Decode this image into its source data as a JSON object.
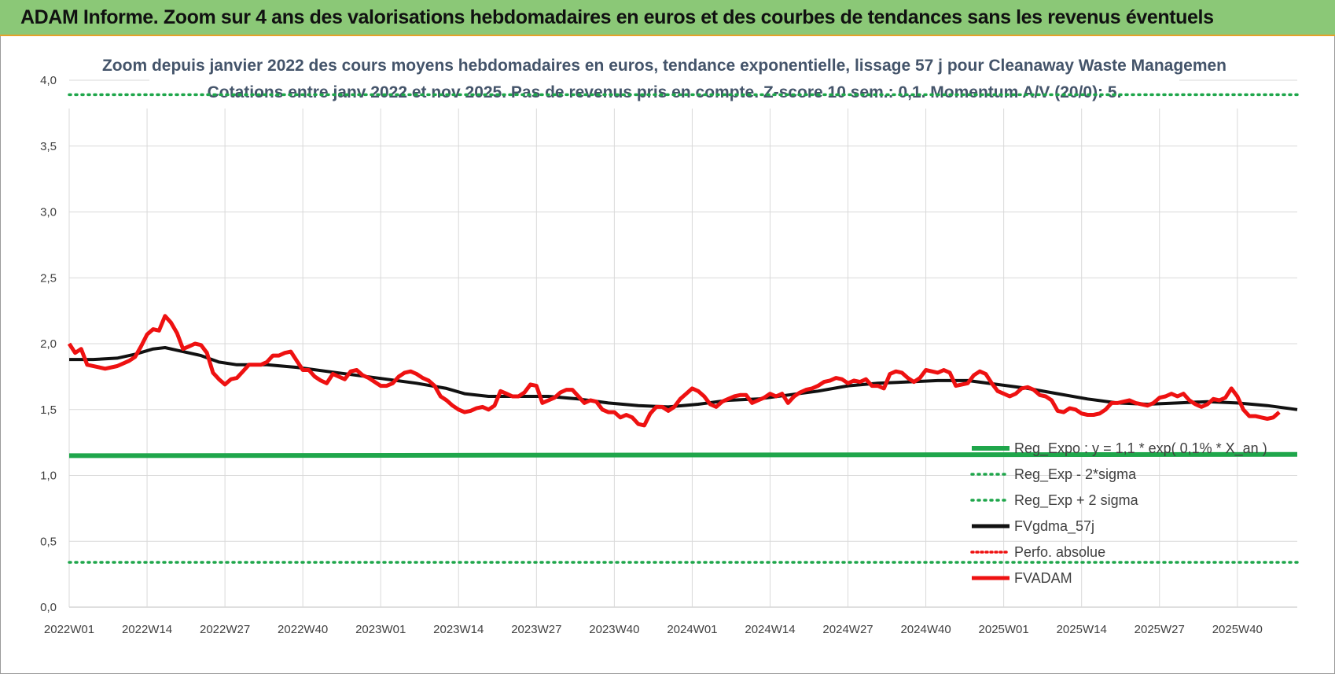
{
  "banner": {
    "title": "ADAM Informe. Zoom sur 4 ans des valorisations hebdomadaires en euros et des courbes de tendances sans les revenus éventuels"
  },
  "colors": {
    "banner_bg": "#8bc877",
    "banner_border": "#e5a12a",
    "price": "#ee1111",
    "smooth": "#111111",
    "trend": "#1fa64b",
    "band": "#1fa64b",
    "absolute": "#ee1111",
    "grid": "#d9d9d9"
  },
  "chart_data": {
    "type": "line",
    "title": "Zoom depuis janvier 2022 des cours moyens hebdomadaires en euros, tendance exponentielle, lissage 57 j pour Cleanaway Waste Managemen",
    "subtitle": "Cotations entre janv 2022 et nov 2025. Pas de revenus pris en compte. Z-score 10 sem.: 0,1. Momentum A/V (20/0): 5.",
    "xlabel": "",
    "ylabel": "",
    "ylim": [
      0,
      4
    ],
    "yticks": [
      "0,0",
      "0,5",
      "1,0",
      "1,5",
      "2,0",
      "2,5",
      "3,0",
      "3,5",
      "4,0"
    ],
    "xticks": [
      "2022W01",
      "2022W14",
      "2022W27",
      "2022W40",
      "2023W01",
      "2023W14",
      "2023W27",
      "2023W40",
      "2024W01",
      "2024W14",
      "2024W27",
      "2024W40",
      "2025W01",
      "2025W14",
      "2025W27",
      "2025W40"
    ],
    "weeks_per_tick": 13,
    "n_weeks": 206,
    "grid": true,
    "legend_position": "right",
    "series": [
      {
        "name": "Reg_Expo : y = 1,1 * exp( 0,1% * X_an )",
        "style": "solid-thick",
        "points": [
          [
            0,
            1.15
          ],
          [
            205,
            1.16
          ]
        ]
      },
      {
        "name": "Reg_Exp - 2*sigma",
        "style": "dotted",
        "points": [
          [
            0,
            0.34
          ],
          [
            205,
            0.34
          ]
        ]
      },
      {
        "name": "Reg_Exp + 2 sigma",
        "style": "dotted",
        "points": [
          [
            0,
            3.89
          ],
          [
            205,
            3.89
          ]
        ]
      },
      {
        "name": "FVgdma_57j",
        "style": "solid",
        "points": [
          [
            0,
            1.88
          ],
          [
            4,
            1.88
          ],
          [
            8,
            1.89
          ],
          [
            11,
            1.92
          ],
          [
            14,
            1.96
          ],
          [
            16,
            1.97
          ],
          [
            19,
            1.94
          ],
          [
            22,
            1.91
          ],
          [
            25,
            1.86
          ],
          [
            28,
            1.84
          ],
          [
            33,
            1.84
          ],
          [
            38,
            1.82
          ],
          [
            43,
            1.79
          ],
          [
            48,
            1.76
          ],
          [
            53,
            1.73
          ],
          [
            58,
            1.7
          ],
          [
            63,
            1.66
          ],
          [
            66,
            1.62
          ],
          [
            70,
            1.6
          ],
          [
            75,
            1.6
          ],
          [
            80,
            1.6
          ],
          [
            85,
            1.58
          ],
          [
            90,
            1.55
          ],
          [
            95,
            1.53
          ],
          [
            100,
            1.52
          ],
          [
            105,
            1.54
          ],
          [
            110,
            1.57
          ],
          [
            115,
            1.58
          ],
          [
            120,
            1.61
          ],
          [
            125,
            1.64
          ],
          [
            130,
            1.68
          ],
          [
            135,
            1.7
          ],
          [
            140,
            1.71
          ],
          [
            145,
            1.72
          ],
          [
            150,
            1.72
          ],
          [
            155,
            1.69
          ],
          [
            160,
            1.66
          ],
          [
            165,
            1.62
          ],
          [
            170,
            1.58
          ],
          [
            175,
            1.55
          ],
          [
            180,
            1.54
          ],
          [
            185,
            1.55
          ],
          [
            190,
            1.56
          ],
          [
            195,
            1.55
          ],
          [
            200,
            1.53
          ],
          [
            205,
            1.5
          ]
        ]
      },
      {
        "name": "Perfo. absolue",
        "style": "dotted",
        "points": []
      },
      {
        "name": "FVADAM",
        "style": "solid-thick",
        "points": [
          [
            0,
            2.0
          ],
          [
            1,
            1.93
          ],
          [
            2,
            1.96
          ],
          [
            3,
            1.84
          ],
          [
            5,
            1.82
          ],
          [
            6,
            1.81
          ],
          [
            8,
            1.83
          ],
          [
            10,
            1.87
          ],
          [
            11,
            1.9
          ],
          [
            12,
            1.98
          ],
          [
            13,
            2.07
          ],
          [
            14,
            2.11
          ],
          [
            15,
            2.1
          ],
          [
            16,
            2.21
          ],
          [
            17,
            2.16
          ],
          [
            18,
            2.08
          ],
          [
            19,
            1.96
          ],
          [
            20,
            1.98
          ],
          [
            21,
            2.0
          ],
          [
            22,
            1.99
          ],
          [
            23,
            1.93
          ],
          [
            24,
            1.78
          ],
          [
            25,
            1.73
          ],
          [
            26,
            1.69
          ],
          [
            27,
            1.73
          ],
          [
            28,
            1.74
          ],
          [
            29,
            1.79
          ],
          [
            30,
            1.84
          ],
          [
            32,
            1.84
          ],
          [
            33,
            1.86
          ],
          [
            34,
            1.91
          ],
          [
            35,
            1.91
          ],
          [
            36,
            1.93
          ],
          [
            37,
            1.94
          ],
          [
            38,
            1.87
          ],
          [
            39,
            1.8
          ],
          [
            40,
            1.8
          ],
          [
            41,
            1.75
          ],
          [
            42,
            1.72
          ],
          [
            43,
            1.7
          ],
          [
            44,
            1.77
          ],
          [
            45,
            1.75
          ],
          [
            46,
            1.73
          ],
          [
            47,
            1.79
          ],
          [
            48,
            1.8
          ],
          [
            49,
            1.76
          ],
          [
            50,
            1.74
          ],
          [
            51,
            1.71
          ],
          [
            52,
            1.68
          ],
          [
            53,
            1.68
          ],
          [
            54,
            1.7
          ],
          [
            55,
            1.75
          ],
          [
            56,
            1.78
          ],
          [
            57,
            1.79
          ],
          [
            58,
            1.77
          ],
          [
            59,
            1.74
          ],
          [
            60,
            1.72
          ],
          [
            61,
            1.68
          ],
          [
            62,
            1.6
          ],
          [
            63,
            1.57
          ],
          [
            64,
            1.53
          ],
          [
            65,
            1.5
          ],
          [
            66,
            1.48
          ],
          [
            67,
            1.49
          ],
          [
            68,
            1.51
          ],
          [
            69,
            1.52
          ],
          [
            70,
            1.5
          ],
          [
            71,
            1.53
          ],
          [
            72,
            1.64
          ],
          [
            73,
            1.62
          ],
          [
            74,
            1.6
          ],
          [
            75,
            1.6
          ],
          [
            76,
            1.63
          ],
          [
            77,
            1.69
          ],
          [
            78,
            1.68
          ],
          [
            79,
            1.55
          ],
          [
            80,
            1.57
          ],
          [
            81,
            1.59
          ],
          [
            82,
            1.63
          ],
          [
            83,
            1.65
          ],
          [
            84,
            1.65
          ],
          [
            85,
            1.6
          ],
          [
            86,
            1.55
          ],
          [
            87,
            1.57
          ],
          [
            88,
            1.56
          ],
          [
            89,
            1.5
          ],
          [
            90,
            1.48
          ],
          [
            91,
            1.48
          ],
          [
            92,
            1.44
          ],
          [
            93,
            1.46
          ],
          [
            94,
            1.44
          ],
          [
            95,
            1.39
          ],
          [
            96,
            1.38
          ],
          [
            97,
            1.47
          ],
          [
            98,
            1.52
          ],
          [
            99,
            1.52
          ],
          [
            100,
            1.49
          ],
          [
            101,
            1.52
          ],
          [
            102,
            1.58
          ],
          [
            103,
            1.62
          ],
          [
            104,
            1.66
          ],
          [
            105,
            1.64
          ],
          [
            106,
            1.6
          ],
          [
            107,
            1.54
          ],
          [
            108,
            1.52
          ],
          [
            109,
            1.56
          ],
          [
            110,
            1.58
          ],
          [
            111,
            1.6
          ],
          [
            112,
            1.61
          ],
          [
            113,
            1.61
          ],
          [
            114,
            1.55
          ],
          [
            115,
            1.57
          ],
          [
            116,
            1.59
          ],
          [
            117,
            1.62
          ],
          [
            118,
            1.6
          ],
          [
            119,
            1.62
          ],
          [
            120,
            1.55
          ],
          [
            121,
            1.6
          ],
          [
            122,
            1.63
          ],
          [
            123,
            1.65
          ],
          [
            124,
            1.66
          ],
          [
            125,
            1.68
          ],
          [
            126,
            1.71
          ],
          [
            127,
            1.72
          ],
          [
            128,
            1.74
          ],
          [
            129,
            1.73
          ],
          [
            130,
            1.7
          ],
          [
            131,
            1.72
          ],
          [
            132,
            1.71
          ],
          [
            133,
            1.73
          ],
          [
            134,
            1.68
          ],
          [
            135,
            1.68
          ],
          [
            136,
            1.66
          ],
          [
            137,
            1.77
          ],
          [
            138,
            1.79
          ],
          [
            139,
            1.78
          ],
          [
            140,
            1.74
          ],
          [
            141,
            1.71
          ],
          [
            142,
            1.74
          ],
          [
            143,
            1.8
          ],
          [
            144,
            1.79
          ],
          [
            145,
            1.78
          ],
          [
            146,
            1.8
          ],
          [
            147,
            1.78
          ],
          [
            148,
            1.68
          ],
          [
            149,
            1.69
          ],
          [
            150,
            1.7
          ],
          [
            151,
            1.76
          ],
          [
            152,
            1.79
          ],
          [
            153,
            1.77
          ],
          [
            154,
            1.7
          ],
          [
            155,
            1.64
          ],
          [
            156,
            1.62
          ],
          [
            157,
            1.6
          ],
          [
            158,
            1.62
          ],
          [
            159,
            1.66
          ],
          [
            160,
            1.67
          ],
          [
            161,
            1.65
          ],
          [
            162,
            1.61
          ],
          [
            163,
            1.6
          ],
          [
            164,
            1.57
          ],
          [
            165,
            1.49
          ],
          [
            166,
            1.48
          ],
          [
            167,
            1.51
          ],
          [
            168,
            1.5
          ],
          [
            169,
            1.47
          ],
          [
            170,
            1.46
          ],
          [
            171,
            1.46
          ],
          [
            172,
            1.47
          ],
          [
            173,
            1.5
          ],
          [
            174,
            1.55
          ],
          [
            175,
            1.55
          ],
          [
            176,
            1.56
          ],
          [
            177,
            1.57
          ],
          [
            178,
            1.55
          ],
          [
            179,
            1.54
          ],
          [
            180,
            1.53
          ],
          [
            181,
            1.55
          ],
          [
            182,
            1.59
          ],
          [
            183,
            1.6
          ],
          [
            184,
            1.62
          ],
          [
            185,
            1.6
          ],
          [
            186,
            1.62
          ],
          [
            187,
            1.57
          ],
          [
            188,
            1.54
          ],
          [
            189,
            1.52
          ],
          [
            190,
            1.54
          ],
          [
            191,
            1.58
          ],
          [
            192,
            1.57
          ],
          [
            193,
            1.59
          ],
          [
            194,
            1.66
          ],
          [
            195,
            1.6
          ],
          [
            196,
            1.5
          ],
          [
            197,
            1.45
          ],
          [
            198,
            1.45
          ],
          [
            199,
            1.44
          ],
          [
            200,
            1.43
          ],
          [
            201,
            1.44
          ],
          [
            202,
            1.48
          ]
        ]
      }
    ]
  }
}
